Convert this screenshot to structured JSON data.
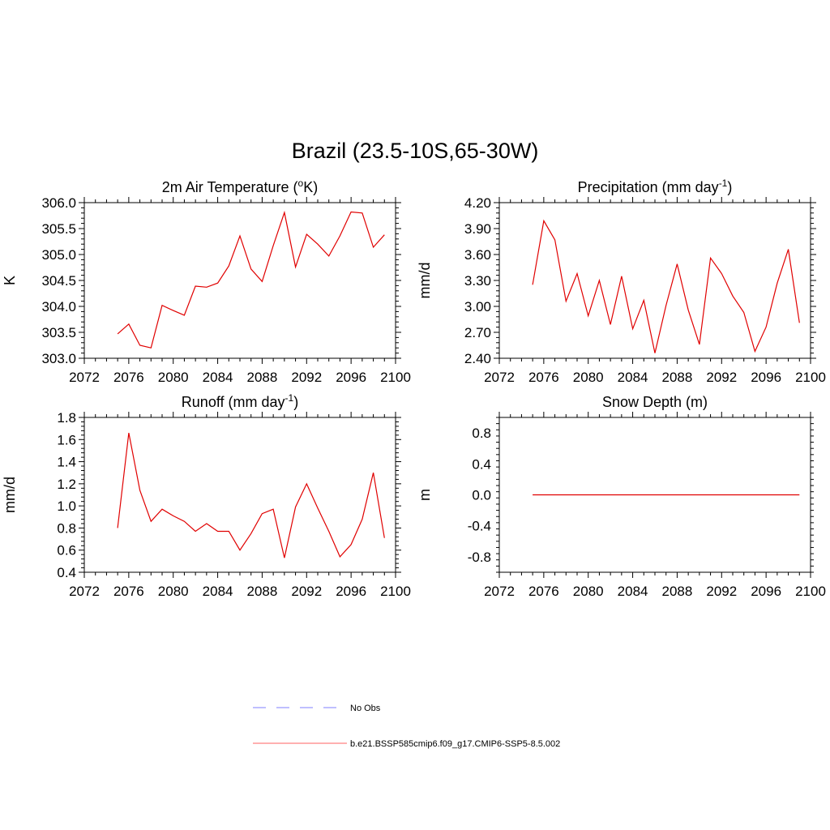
{
  "figure": {
    "title": "Brazil (23.5-10S,65-30W)"
  },
  "legend": {
    "placement": "bottom-center",
    "entries": [
      {
        "label": "No Obs",
        "color": "#9999ff",
        "dash": "dashed"
      },
      {
        "label": "b.e21.BSSP585cmip6.f09_g17.CMIP6-SSP5-8.5.002",
        "color": "#ff8080",
        "dash": "solid"
      }
    ]
  },
  "chart_data": [
    {
      "type": "line",
      "title": "2m Air Temperature (",
      "title_sup": "o",
      "title_after": "K)",
      "xlabel": "",
      "ylabel": "K",
      "xlim": [
        2072,
        2100
      ],
      "ylim": [
        303.0,
        306.0
      ],
      "xticks": [
        "2072",
        "2076",
        "2080",
        "2084",
        "2088",
        "2092",
        "2096",
        "2100"
      ],
      "yticks": [
        "303.0",
        "303.5",
        "304.0",
        "304.5",
        "305.0",
        "305.5",
        "306.0"
      ],
      "grid": false,
      "line_color": "#e00000",
      "x": [
        2075,
        2076,
        2077,
        2078,
        2079,
        2080,
        2081,
        2082,
        2083,
        2084,
        2085,
        2086,
        2087,
        2088,
        2089,
        2090,
        2091,
        2092,
        2093,
        2094,
        2095,
        2096,
        2097,
        2098,
        2099
      ],
      "y": [
        303.47,
        303.66,
        303.25,
        303.2,
        304.02,
        303.92,
        303.83,
        304.39,
        304.37,
        304.45,
        304.78,
        305.36,
        304.72,
        304.48,
        305.17,
        305.81,
        304.76,
        305.39,
        305.2,
        304.97,
        305.36,
        305.82,
        305.8,
        305.14,
        305.38
      ]
    },
    {
      "type": "line",
      "title": "Precipitation (mm day",
      "title_sup": "-1",
      "title_after": ")",
      "xlabel": "",
      "ylabel": "mm/d",
      "xlim": [
        2072,
        2100
      ],
      "ylim": [
        2.4,
        4.2
      ],
      "xticks": [
        "2072",
        "2076",
        "2080",
        "2084",
        "2088",
        "2092",
        "2096",
        "2100"
      ],
      "yticks": [
        "2.40",
        "2.70",
        "3.00",
        "3.30",
        "3.60",
        "3.90",
        "4.20"
      ],
      "grid": false,
      "line_color": "#e00000",
      "x": [
        2075,
        2076,
        2077,
        2078,
        2079,
        2080,
        2081,
        2082,
        2083,
        2084,
        2085,
        2086,
        2087,
        2088,
        2089,
        2090,
        2091,
        2092,
        2093,
        2094,
        2095,
        2096,
        2097,
        2098,
        2099
      ],
      "y": [
        3.25,
        3.99,
        3.77,
        3.06,
        3.38,
        2.89,
        3.3,
        2.79,
        3.35,
        2.74,
        3.07,
        2.46,
        3.01,
        3.49,
        2.96,
        2.56,
        3.56,
        3.38,
        3.12,
        2.93,
        2.48,
        2.76,
        3.27,
        3.66,
        2.81
      ]
    },
    {
      "type": "line",
      "title": "Runoff (mm day",
      "title_sup": "-1",
      "title_after": ")",
      "xlabel": "",
      "ylabel": "mm/d",
      "xlim": [
        2072,
        2100
      ],
      "ylim": [
        0.4,
        1.8
      ],
      "xticks": [
        "2072",
        "2076",
        "2080",
        "2084",
        "2088",
        "2092",
        "2096",
        "2100"
      ],
      "yticks": [
        "0.4",
        "0.6",
        "0.8",
        "1.0",
        "1.2",
        "1.4",
        "1.6",
        "1.8"
      ],
      "grid": false,
      "line_color": "#e00000",
      "x": [
        2075,
        2076,
        2077,
        2078,
        2079,
        2080,
        2081,
        2082,
        2083,
        2084,
        2085,
        2086,
        2087,
        2088,
        2089,
        2090,
        2091,
        2092,
        2093,
        2094,
        2095,
        2096,
        2097,
        2098,
        2099
      ],
      "y": [
        0.8,
        1.66,
        1.14,
        0.86,
        0.97,
        0.91,
        0.86,
        0.77,
        0.84,
        0.77,
        0.77,
        0.6,
        0.75,
        0.93,
        0.97,
        0.53,
        0.99,
        1.2,
        0.98,
        0.77,
        0.54,
        0.65,
        0.88,
        1.3,
        0.71
      ]
    },
    {
      "type": "line",
      "title": "Snow Depth (m)",
      "title_sup": "",
      "title_after": "",
      "xlabel": "",
      "ylabel": "m",
      "xlim": [
        2072,
        2100
      ],
      "ylim": [
        -1.0,
        1.0
      ],
      "xticks": [
        "2072",
        "2076",
        "2080",
        "2084",
        "2088",
        "2092",
        "2096",
        "2100"
      ],
      "yticks": [
        "-0.8",
        "-0.4",
        "0.0",
        "0.4",
        "0.8"
      ],
      "ytick_values": [
        -0.8,
        -0.4,
        0.0,
        0.4,
        0.8
      ],
      "grid": false,
      "line_color": "#e00000",
      "x": [
        2075,
        2076,
        2077,
        2078,
        2079,
        2080,
        2081,
        2082,
        2083,
        2084,
        2085,
        2086,
        2087,
        2088,
        2089,
        2090,
        2091,
        2092,
        2093,
        2094,
        2095,
        2096,
        2097,
        2098,
        2099
      ],
      "y": [
        0,
        0,
        0,
        0,
        0,
        0,
        0,
        0,
        0,
        0,
        0,
        0,
        0,
        0,
        0,
        0,
        0,
        0,
        0,
        0,
        0,
        0,
        0,
        0,
        0
      ]
    }
  ]
}
